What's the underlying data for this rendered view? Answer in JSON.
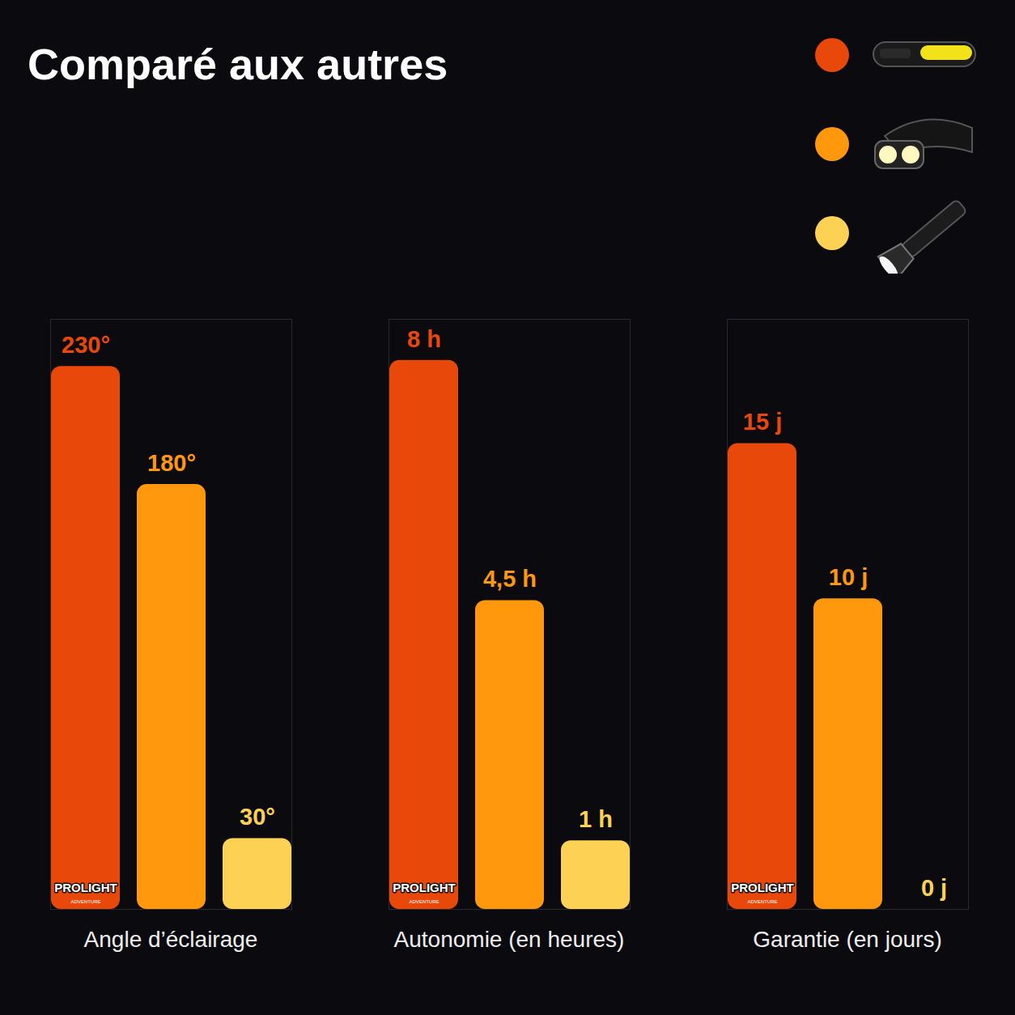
{
  "title": "Comparé aux autres",
  "legend": "top-right",
  "logo": {
    "text": "PROLIGHT",
    "subtext": "ADVENTURE"
  },
  "chart_data": [
    {
      "type": "bar",
      "xlabel": "Angle d’éclairage",
      "categories": [
        null,
        null,
        null
      ],
      "values": [
        230,
        180,
        30
      ],
      "value_labels": [
        "230°",
        "180°",
        "30°"
      ],
      "colors": [
        "#e8480a",
        "#ff980d",
        "#fdd254"
      ],
      "ylim": [
        0,
        250
      ],
      "data_labels": true,
      "tick_labels": false
    },
    {
      "type": "bar",
      "xlabel": "Autonomie (en heures)",
      "categories": [
        null,
        null,
        null
      ],
      "values": [
        8,
        4.5,
        1
      ],
      "value_labels": [
        "8 h",
        "4,5 h",
        "1 h"
      ],
      "colors": [
        "#e8480a",
        "#ff980d",
        "#fdd254"
      ],
      "ylim": [
        0,
        8.6
      ],
      "data_labels": true,
      "tick_labels": false
    },
    {
      "type": "bar",
      "xlabel": "Garantie (en jours)",
      "categories": [
        null,
        null,
        null
      ],
      "values": [
        15,
        10,
        0
      ],
      "value_labels": [
        "15 j",
        "10 j",
        "0 j"
      ],
      "colors": [
        "#e8480a",
        "#ff980d",
        "#fdd254"
      ],
      "ylim": [
        0,
        19
      ],
      "data_labels": true,
      "tick_labels": false
    }
  ]
}
